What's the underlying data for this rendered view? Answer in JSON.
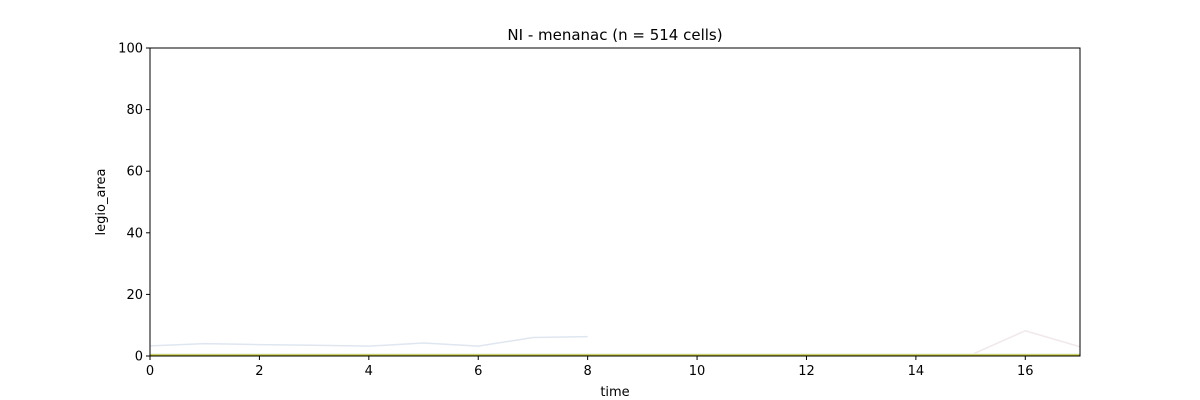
{
  "chart_data": {
    "type": "line",
    "title": "NI - menanac (n = 514 cells)",
    "xlabel": "time",
    "ylabel": "legio_area",
    "xlim": [
      0,
      17
    ],
    "ylim": [
      0,
      100
    ],
    "xticks": [
      0,
      2,
      4,
      6,
      8,
      10,
      12,
      14,
      16
    ],
    "yticks": [
      0,
      20,
      40,
      60,
      80,
      100
    ],
    "grid": false,
    "legend": "none",
    "series": [
      {
        "color": "#dfe6f0",
        "x": [
          0,
          1,
          2,
          3,
          4,
          5,
          6,
          7,
          8
        ],
        "y": [
          3.3,
          4.0,
          3.7,
          3.5,
          3.2,
          4.2,
          3.2,
          6.0,
          6.3
        ]
      },
      {
        "color": "#f0e8ea",
        "x": [
          15,
          16,
          17
        ],
        "y": [
          0.3,
          8.2,
          3.0
        ]
      },
      {
        "color": "#e9f1ea",
        "x": [
          0,
          1,
          2,
          3,
          4,
          5,
          6,
          7,
          8,
          9,
          10,
          11,
          12,
          13,
          14,
          15,
          16,
          17
        ],
        "y": [
          0.6,
          0.6,
          0.6,
          0.6,
          0.6,
          0.6,
          0.6,
          0.6,
          0.6,
          0.6,
          0.6,
          0.6,
          0.6,
          0.6,
          0.6,
          0.6,
          0.6,
          0.6
        ]
      },
      {
        "color": "#bcbd22",
        "x": [
          0,
          1,
          2,
          3,
          4,
          5,
          6,
          7,
          8,
          9,
          10,
          11,
          12,
          13,
          14,
          15,
          16,
          17
        ],
        "y": [
          0.3,
          0.3,
          0.3,
          0.3,
          0.3,
          0.3,
          0.3,
          0.3,
          0.3,
          0.3,
          0.3,
          0.3,
          0.3,
          0.3,
          0.3,
          0.3,
          0.3,
          0.3
        ]
      }
    ]
  }
}
